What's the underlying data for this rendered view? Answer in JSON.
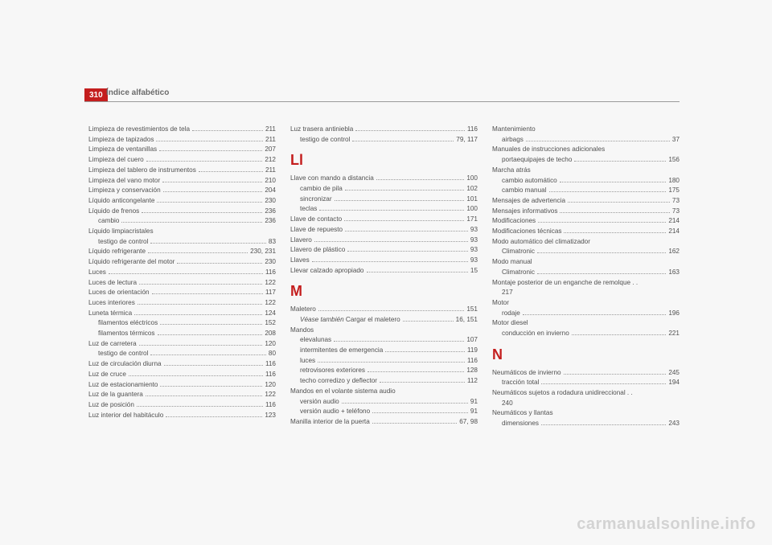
{
  "page_number": "310",
  "header_title": "Índice alfabético",
  "watermark": "carmanualsonline.info",
  "columns": [
    {
      "items": [
        {
          "type": "entry",
          "label": "Limpieza de revestimientos de tela",
          "page": "211"
        },
        {
          "type": "entry",
          "label": "Limpieza de tapizados",
          "page": "211"
        },
        {
          "type": "entry",
          "label": "Limpieza de ventanillas",
          "page": "207"
        },
        {
          "type": "entry",
          "label": "Limpieza del cuero",
          "page": "212"
        },
        {
          "type": "entry",
          "label": "Limpieza del tablero de instrumentos",
          "page": "211"
        },
        {
          "type": "entry",
          "label": "Limpieza del vano motor",
          "page": "210"
        },
        {
          "type": "entry",
          "label": "Limpieza y conservación",
          "page": "204"
        },
        {
          "type": "entry",
          "label": "Líquido anticongelante",
          "page": "230"
        },
        {
          "type": "entry",
          "label": "Líquido de frenos",
          "page": "236"
        },
        {
          "type": "entry",
          "sub": true,
          "label": "cambio",
          "page": "236"
        },
        {
          "type": "plain",
          "label": "Líquido limpiacristales"
        },
        {
          "type": "entry",
          "sub": true,
          "label": "testigo de control",
          "page": "83"
        },
        {
          "type": "entry",
          "label": "Líquido refrigerante",
          "page": "230, 231"
        },
        {
          "type": "entry",
          "label": "Líquido refrigerante del motor",
          "page": "230"
        },
        {
          "type": "entry",
          "label": "Luces",
          "page": "116"
        },
        {
          "type": "entry",
          "label": "Luces de lectura",
          "page": "122"
        },
        {
          "type": "entry",
          "label": "Luces de orientación",
          "page": "117"
        },
        {
          "type": "entry",
          "label": "Luces interiores",
          "page": "122"
        },
        {
          "type": "entry",
          "label": "Luneta térmica",
          "page": "124"
        },
        {
          "type": "entry",
          "sub": true,
          "label": "filamentos eléctricos",
          "page": "152"
        },
        {
          "type": "entry",
          "sub": true,
          "label": "filamentos térmicos",
          "page": "208"
        },
        {
          "type": "entry",
          "label": "Luz de carretera",
          "page": "120"
        },
        {
          "type": "entry",
          "sub": true,
          "label": "testigo de control",
          "page": "80"
        },
        {
          "type": "entry",
          "label": "Luz de circulación diurna",
          "page": "116"
        },
        {
          "type": "entry",
          "label": "Luz de cruce",
          "page": "116"
        },
        {
          "type": "entry",
          "label": "Luz de estacionamiento",
          "page": "120"
        },
        {
          "type": "entry",
          "label": "Luz de la guantera",
          "page": "122"
        },
        {
          "type": "entry",
          "label": "Luz de posición",
          "page": "116"
        },
        {
          "type": "entry",
          "label": "Luz interior del habitáculo",
          "page": "123"
        }
      ]
    },
    {
      "items": [
        {
          "type": "entry",
          "label": "Luz trasera antiniebla",
          "page": "116"
        },
        {
          "type": "entry",
          "sub": true,
          "label": "testigo de control",
          "page": "79, 117"
        },
        {
          "type": "section",
          "label": "Ll"
        },
        {
          "type": "entry",
          "label": "Llave con mando a distancia",
          "page": "100"
        },
        {
          "type": "entry",
          "sub": true,
          "label": "cambio de pila",
          "page": "102"
        },
        {
          "type": "entry",
          "sub": true,
          "label": "sincronizar",
          "page": "101"
        },
        {
          "type": "entry",
          "sub": true,
          "label": "teclas",
          "page": "100"
        },
        {
          "type": "entry",
          "label": "Llave de contacto",
          "page": "171"
        },
        {
          "type": "entry",
          "label": "Llave de repuesto",
          "page": "93"
        },
        {
          "type": "entry",
          "label": "Llavero",
          "page": "93"
        },
        {
          "type": "entry",
          "label": "Llavero de plástico",
          "page": "93"
        },
        {
          "type": "entry",
          "label": "Llaves",
          "page": "93"
        },
        {
          "type": "entry",
          "label": "Llevar calzado apropiado",
          "page": "15"
        },
        {
          "type": "section",
          "label": "M"
        },
        {
          "type": "entry",
          "label": "Maletero",
          "page": "151"
        },
        {
          "type": "entry",
          "sub": true,
          "italicPrefix": "Véase también ",
          "label": "Cargar el maletero",
          "page": "16, 151"
        },
        {
          "type": "plain",
          "label": "Mandos"
        },
        {
          "type": "entry",
          "sub": true,
          "label": "elevalunas",
          "page": "107"
        },
        {
          "type": "entry",
          "sub": true,
          "label": "intermitentes de emergencia",
          "page": "119"
        },
        {
          "type": "entry",
          "sub": true,
          "label": "luces",
          "page": "116"
        },
        {
          "type": "entry",
          "sub": true,
          "label": "retrovisores exteriores",
          "page": "128"
        },
        {
          "type": "entry",
          "sub": true,
          "label": "techo corredizo y deflector",
          "page": "112"
        },
        {
          "type": "plain",
          "label": "Mandos en el volante sistema audio"
        },
        {
          "type": "entry",
          "sub": true,
          "label": "versión audio",
          "page": "91"
        },
        {
          "type": "entry",
          "sub": true,
          "label": "versión audio + teléfono",
          "page": "91"
        },
        {
          "type": "entry",
          "label": "Manilla interior de la puerta",
          "page": "67, 98"
        }
      ]
    },
    {
      "items": [
        {
          "type": "plain",
          "label": "Mantenimiento"
        },
        {
          "type": "entry",
          "sub": true,
          "label": "airbags",
          "page": "37"
        },
        {
          "type": "plain",
          "label": "Manuales de instrucciones adicionales"
        },
        {
          "type": "entry",
          "sub": true,
          "label": "portaequipajes de techo",
          "page": "156"
        },
        {
          "type": "plain",
          "label": "Marcha atrás"
        },
        {
          "type": "entry",
          "sub": true,
          "label": "cambio automático",
          "page": "180"
        },
        {
          "type": "entry",
          "sub": true,
          "label": "cambio manual",
          "page": "175"
        },
        {
          "type": "entry",
          "label": "Mensajes de advertencia",
          "page": "73"
        },
        {
          "type": "entry",
          "label": "Mensajes informativos",
          "page": "73"
        },
        {
          "type": "entry",
          "label": "Modificaciones",
          "page": "214"
        },
        {
          "type": "entry",
          "label": "Modificaciones técnicas",
          "page": "214"
        },
        {
          "type": "plain",
          "label": "Modo automático del climatizador"
        },
        {
          "type": "entry",
          "sub": true,
          "label": "Climatronic",
          "page": "162"
        },
        {
          "type": "plain",
          "label": "Modo manual"
        },
        {
          "type": "entry",
          "sub": true,
          "label": "Climatronic",
          "page": "163"
        },
        {
          "type": "wrap",
          "label": "Montaje posterior de un enganche de remolque  . .",
          "tail": "217"
        },
        {
          "type": "plain",
          "label": "Motor"
        },
        {
          "type": "entry",
          "sub": true,
          "label": "rodaje",
          "page": "196"
        },
        {
          "type": "plain",
          "label": "Motor diesel"
        },
        {
          "type": "entry",
          "sub": true,
          "label": "conducción en invierno",
          "page": "221"
        },
        {
          "type": "section",
          "label": "N"
        },
        {
          "type": "entry",
          "label": "Neumáticos de invierno",
          "page": "245"
        },
        {
          "type": "entry",
          "sub": true,
          "label": "tracción total",
          "page": "194"
        },
        {
          "type": "wrap",
          "label": "Neumáticos sujetos a rodadura unidireccional  . .",
          "tail": "240"
        },
        {
          "type": "plain",
          "label": "Neumáticos y llantas"
        },
        {
          "type": "entry",
          "sub": true,
          "label": "dimensiones",
          "page": "243"
        }
      ]
    }
  ]
}
